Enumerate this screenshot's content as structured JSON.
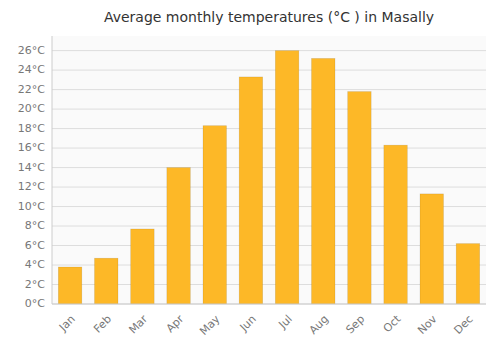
{
  "chart_data": {
    "type": "bar",
    "title": "Average monthly temperatures (°C ) in Masally",
    "categories": [
      "Jan",
      "Feb",
      "Mar",
      "Apr",
      "May",
      "Jun",
      "Jul",
      "Aug",
      "Sep",
      "Oct",
      "Nov",
      "Dec"
    ],
    "values": [
      3.8,
      4.7,
      7.7,
      14.0,
      18.3,
      23.3,
      26.0,
      25.2,
      21.8,
      16.3,
      11.3,
      6.2
    ],
    "color": "#FDB827",
    "ylim": [
      0,
      27.5
    ],
    "yticks": [
      {
        "value": 0,
        "label": "0°C"
      },
      {
        "value": 2,
        "label": "2°C"
      },
      {
        "value": 4,
        "label": "4°C"
      },
      {
        "value": 6,
        "label": "6°C"
      },
      {
        "value": 8,
        "label": "8°C"
      },
      {
        "value": 10,
        "label": "10°C"
      },
      {
        "value": 12,
        "label": "12°C"
      },
      {
        "value": 14,
        "label": "14°C"
      },
      {
        "value": 16,
        "label": "16°C"
      },
      {
        "value": 18,
        "label": "18°C"
      },
      {
        "value": 20,
        "label": "20°C"
      },
      {
        "value": 22,
        "label": "22°C"
      },
      {
        "value": 24,
        "label": "24°C"
      },
      {
        "value": 26,
        "label": "26°C"
      }
    ],
    "grid": true
  }
}
